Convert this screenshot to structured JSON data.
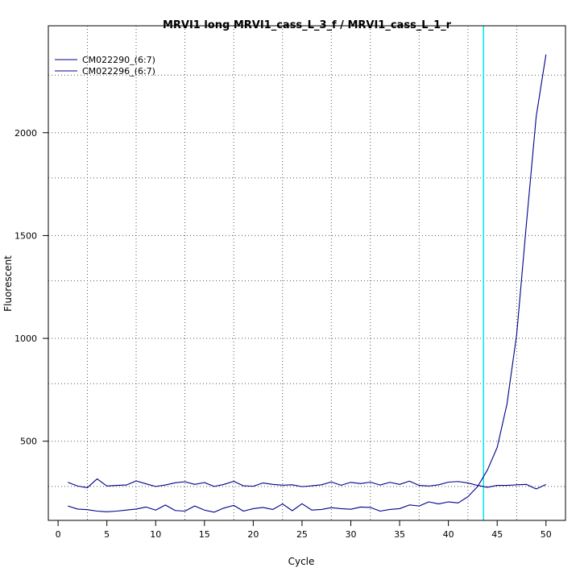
{
  "chart_data": {
    "type": "line",
    "title": "MRVI1 long MRVI1_cass_L_3_f / MRVI1_cass_L_1_r",
    "xlabel": "Cycle",
    "ylabel": "Fluorescent",
    "xlim": [
      -1,
      52
    ],
    "ylim": [
      115,
      2520
    ],
    "x_ticks": [
      0,
      5,
      10,
      15,
      20,
      25,
      30,
      35,
      40,
      45,
      50
    ],
    "y_ticks": [
      500,
      1000,
      1500,
      2000
    ],
    "x_grid": [
      3,
      8,
      13,
      18,
      23,
      28,
      32,
      37,
      42,
      47
    ],
    "y_grid": [
      280,
      500,
      780,
      1000,
      1280,
      1500,
      1780,
      2000,
      2280
    ],
    "grid": true,
    "legend_position": "top-left",
    "threshold_x": 43.6,
    "threshold_color": "#00e5ee",
    "series_color": "#00008b",
    "x": [
      1,
      2,
      3,
      4,
      5,
      6,
      7,
      8,
      9,
      10,
      11,
      12,
      13,
      14,
      15,
      16,
      17,
      18,
      19,
      20,
      21,
      22,
      23,
      24,
      25,
      26,
      27,
      28,
      29,
      30,
      31,
      32,
      33,
      34,
      35,
      36,
      37,
      38,
      39,
      40,
      41,
      42,
      43,
      44,
      45,
      46,
      47,
      48,
      49,
      50
    ],
    "series": [
      {
        "name": "CM022290_(6:7)",
        "values": [
          300,
          282,
          274,
          317,
          282,
          285,
          287,
          307,
          293,
          280,
          287,
          298,
          303,
          290,
          299,
          280,
          290,
          305,
          283,
          281,
          297,
          290,
          286,
          288,
          279,
          283,
          288,
          302,
          286,
          300,
          294,
          301,
          287,
          300,
          290,
          306,
          285,
          282,
          288,
          301,
          304,
          297,
          285,
          276,
          285,
          285,
          288,
          290,
          268,
          290
        ]
      },
      {
        "name": "CM022296_(6:7)",
        "values": [
          185,
          170,
          167,
          160,
          157,
          160,
          165,
          170,
          180,
          165,
          190,
          163,
          160,
          185,
          165,
          155,
          175,
          188,
          160,
          172,
          178,
          168,
          195,
          162,
          196,
          165,
          168,
          177,
          172,
          169,
          180,
          178,
          160,
          168,
          172,
          190,
          185,
          205,
          195,
          205,
          200,
          230,
          280,
          360,
          470,
          680,
          1020,
          1560,
          2080,
          2380
        ]
      }
    ]
  }
}
